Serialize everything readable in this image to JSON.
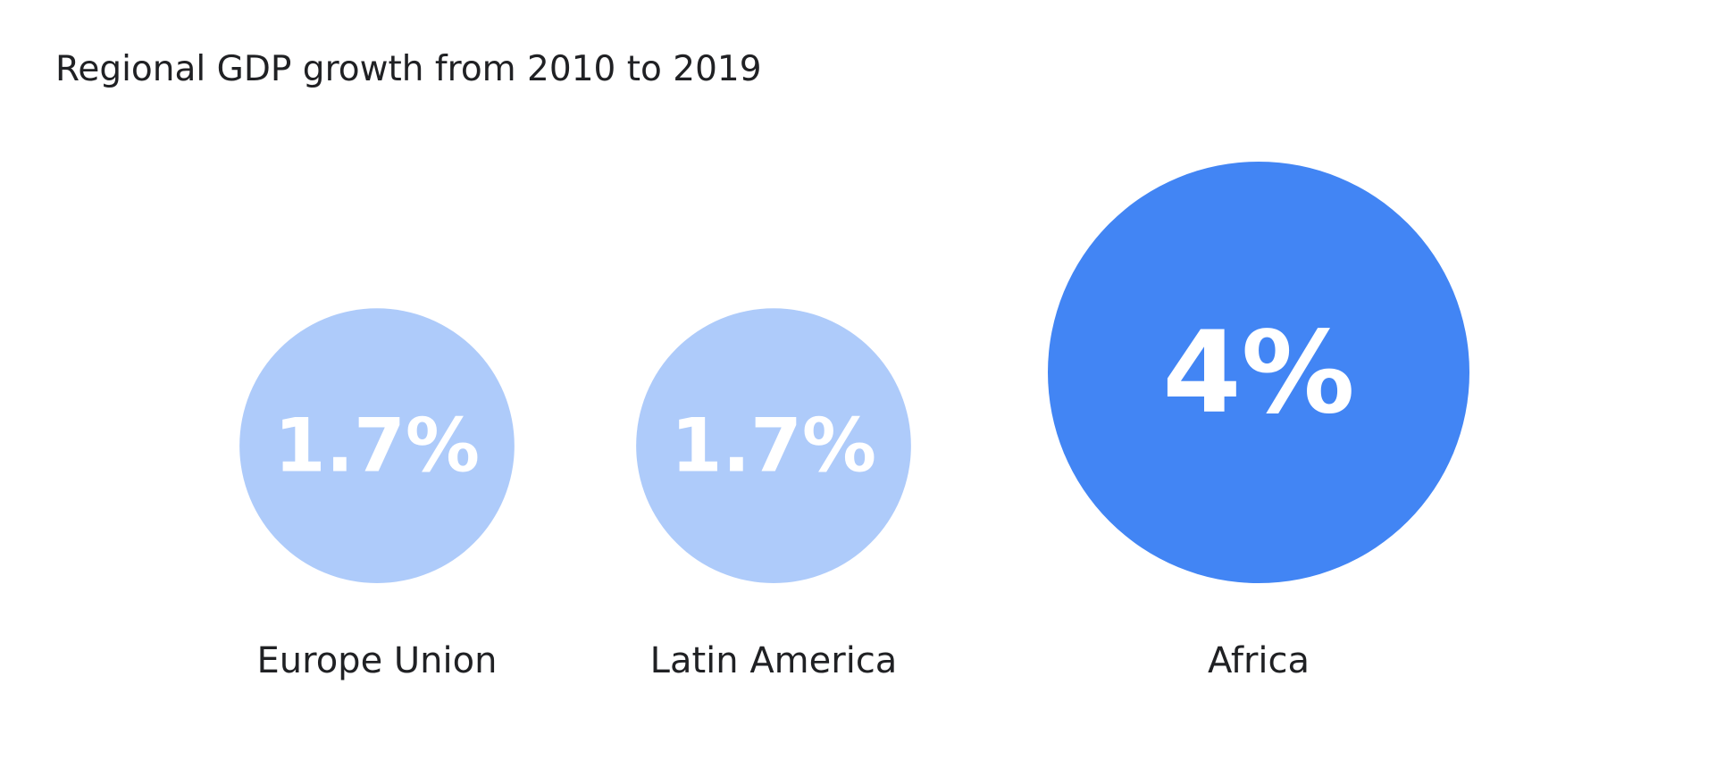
{
  "chart_data": {
    "type": "bubble",
    "title": "Regional GDP growth from 2010 to 2019",
    "categories": [
      "Europe Union",
      "Latin America",
      "Africa"
    ],
    "values": [
      1.7,
      1.7,
      4
    ],
    "value_labels": [
      "1.7%",
      "1.7%",
      "4%"
    ],
    "colors": [
      "#aecbfa",
      "#aecbfa",
      "#4285f4"
    ],
    "xlabel": "",
    "ylabel": "",
    "grid": false,
    "legend": "none"
  }
}
